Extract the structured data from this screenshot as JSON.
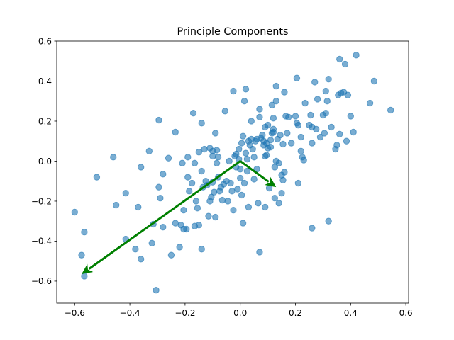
{
  "chart_data": {
    "type": "scatter",
    "title": "Principle Components",
    "xlabel": "",
    "ylabel": "",
    "xlim": [
      -0.665,
      0.61
    ],
    "ylim": [
      -0.71,
      0.6
    ],
    "xticks": [
      -0.6,
      -0.4,
      -0.2,
      0.0,
      0.2,
      0.4,
      0.6
    ],
    "yticks": [
      -0.6,
      -0.4,
      -0.2,
      0.0,
      0.2,
      0.4,
      0.6
    ],
    "xtick_labels": [
      "−0.6",
      "−0.4",
      "−0.2",
      "0.0",
      "0.2",
      "0.4",
      "0.6"
    ],
    "ytick_labels": [
      "−0.6",
      "−0.4",
      "−0.2",
      "0.0",
      "0.2",
      "0.4",
      "0.6"
    ],
    "grid": false,
    "legend": "none",
    "point_color": "#1f77b4",
    "point_alpha": 0.6,
    "arrow_color": "#008000",
    "arrows": [
      {
        "from": [
          0.0,
          0.0
        ],
        "to": [
          -0.575,
          -0.565
        ]
      },
      {
        "from": [
          0.0,
          0.0
        ],
        "to": [
          0.13,
          -0.13
        ]
      }
    ],
    "points": [
      [
        -0.6,
        -0.255
      ],
      [
        -0.565,
        -0.355
      ],
      [
        -0.575,
        -0.47
      ],
      [
        -0.52,
        -0.08
      ],
      [
        -0.46,
        0.02
      ],
      [
        -0.45,
        -0.22
      ],
      [
        -0.415,
        -0.16
      ],
      [
        -0.415,
        -0.39
      ],
      [
        -0.38,
        -0.44
      ],
      [
        -0.37,
        -0.23
      ],
      [
        -0.36,
        -0.03
      ],
      [
        -0.36,
        -0.49
      ],
      [
        -0.33,
        0.05
      ],
      [
        -0.32,
        -0.41
      ],
      [
        -0.315,
        -0.315
      ],
      [
        -0.305,
        -0.645
      ],
      [
        -0.295,
        0.205
      ],
      [
        -0.295,
        -0.13
      ],
      [
        -0.29,
        -0.185
      ],
      [
        -0.28,
        -0.065
      ],
      [
        -0.28,
        -0.33
      ],
      [
        -0.26,
        0.015
      ],
      [
        -0.25,
        -0.47
      ],
      [
        -0.235,
        0.145
      ],
      [
        -0.235,
        -0.31
      ],
      [
        -0.22,
        -0.43
      ],
      [
        -0.215,
        -0.32
      ],
      [
        -0.205,
        -0.34
      ],
      [
        -0.21,
        -0.01
      ],
      [
        -0.205,
        -0.245
      ],
      [
        -0.195,
        -0.34
      ],
      [
        -0.19,
        0.02
      ],
      [
        -0.19,
        -0.08
      ],
      [
        -0.185,
        -0.15
      ],
      [
        -0.175,
        -0.11
      ],
      [
        -0.17,
        0.24
      ],
      [
        -0.165,
        -0.325
      ],
      [
        -0.165,
        -0.01
      ],
      [
        -0.16,
        -0.2
      ],
      [
        -0.155,
        -0.235
      ],
      [
        -0.15,
        0.045
      ],
      [
        -0.15,
        -0.32
      ],
      [
        -0.14,
        0.19
      ],
      [
        -0.14,
        -0.05
      ],
      [
        -0.14,
        -0.44
      ],
      [
        -0.135,
        -0.13
      ],
      [
        -0.13,
        0.06
      ],
      [
        -0.125,
        -0.1
      ],
      [
        -0.12,
        -0.12
      ],
      [
        -0.115,
        -0.275
      ],
      [
        -0.11,
        0.065
      ],
      [
        -0.11,
        -0.2
      ],
      [
        -0.105,
        -0.18
      ],
      [
        -0.1,
        0.05
      ],
      [
        -0.1,
        0.025
      ],
      [
        -0.1,
        -0.105
      ],
      [
        -0.095,
        -0.155
      ],
      [
        -0.09,
        0.14
      ],
      [
        -0.09,
        -0.28
      ],
      [
        -0.085,
        0.055
      ],
      [
        -0.085,
        -0.01
      ],
      [
        -0.08,
        0.02
      ],
      [
        -0.08,
        -0.08
      ],
      [
        -0.075,
        -0.15
      ],
      [
        -0.07,
        -0.13
      ],
      [
        -0.065,
        -0.195
      ],
      [
        -0.06,
        -0.115
      ],
      [
        -0.055,
        0.25
      ],
      [
        -0.05,
        -0.1
      ],
      [
        -0.045,
        -0.2
      ],
      [
        -0.04,
        0.0
      ],
      [
        -0.035,
        -0.11
      ],
      [
        -0.03,
        -0.15
      ],
      [
        -0.025,
        0.35
      ],
      [
        -0.025,
        -0.245
      ],
      [
        -0.02,
        0.025
      ],
      [
        -0.015,
        0.035
      ],
      [
        -0.015,
        -0.03
      ],
      [
        -0.01,
        -0.14
      ],
      [
        -0.005,
        0.06
      ],
      [
        -0.005,
        0.01
      ],
      [
        0.0,
        -0.04
      ],
      [
        0.0,
        -0.085
      ],
      [
        0.005,
        0.09
      ],
      [
        0.005,
        -0.17
      ],
      [
        0.01,
        0.125
      ],
      [
        0.01,
        -0.31
      ],
      [
        0.015,
        0.3
      ],
      [
        0.015,
        -0.11
      ],
      [
        0.02,
        0.36
      ],
      [
        0.02,
        0.04
      ],
      [
        0.025,
        0.01
      ],
      [
        0.025,
        -0.05
      ],
      [
        0.03,
        0.1
      ],
      [
        0.03,
        -0.23
      ],
      [
        0.035,
        0.08
      ],
      [
        0.04,
        0.11
      ],
      [
        0.04,
        0.2
      ],
      [
        0.045,
        0.06
      ],
      [
        0.05,
        0.02
      ],
      [
        0.05,
        -0.09
      ],
      [
        0.055,
        0.1
      ],
      [
        0.06,
        0.11
      ],
      [
        0.06,
        -0.04
      ],
      [
        0.065,
        -0.21
      ],
      [
        0.07,
        0.22
      ],
      [
        0.07,
        0.26
      ],
      [
        0.07,
        -0.455
      ],
      [
        0.075,
        0.115
      ],
      [
        0.08,
        0.13
      ],
      [
        0.085,
        0.1
      ],
      [
        0.085,
        0.08
      ],
      [
        0.09,
        0.17
      ],
      [
        0.09,
        0.025
      ],
      [
        0.09,
        -0.23
      ],
      [
        0.095,
        0.03
      ],
      [
        0.095,
        0.09
      ],
      [
        0.1,
        0.18
      ],
      [
        0.1,
        0.065
      ],
      [
        0.105,
        -0.135
      ],
      [
        0.11,
        0.105
      ],
      [
        0.11,
        0.07
      ],
      [
        0.115,
        0.14
      ],
      [
        0.115,
        0.28
      ],
      [
        0.12,
        0.145
      ],
      [
        0.12,
        0.16
      ],
      [
        0.12,
        0.215
      ],
      [
        0.125,
        -0.185
      ],
      [
        0.125,
        -0.03
      ],
      [
        0.13,
        0.375
      ],
      [
        0.13,
        0.0
      ],
      [
        0.13,
        0.3
      ],
      [
        0.135,
        0.11
      ],
      [
        0.14,
        -0.01
      ],
      [
        0.14,
        -0.21
      ],
      [
        0.145,
        0.13
      ],
      [
        0.15,
        -0.07
      ],
      [
        0.15,
        -0.16
      ],
      [
        0.155,
        -0.095
      ],
      [
        0.155,
        0.085
      ],
      [
        0.16,
        0.345
      ],
      [
        0.16,
        -0.055
      ],
      [
        0.165,
        0.225
      ],
      [
        0.17,
        0.14
      ],
      [
        0.175,
        0.22
      ],
      [
        0.185,
        0.09
      ],
      [
        0.2,
        0.225
      ],
      [
        0.205,
        0.415
      ],
      [
        0.205,
        0.19
      ],
      [
        0.21,
        0.18
      ],
      [
        0.21,
        -0.11
      ],
      [
        0.22,
        0.05
      ],
      [
        0.22,
        0.12
      ],
      [
        0.225,
        0.02
      ],
      [
        0.23,
        0.005
      ],
      [
        0.235,
        0.29
      ],
      [
        0.25,
        0.18
      ],
      [
        0.255,
        0.23
      ],
      [
        0.26,
        0.17
      ],
      [
        0.26,
        0.09
      ],
      [
        0.26,
        -0.335
      ],
      [
        0.27,
        0.395
      ],
      [
        0.275,
        0.16
      ],
      [
        0.28,
        0.31
      ],
      [
        0.29,
        0.12
      ],
      [
        0.3,
        0.23
      ],
      [
        0.305,
        0.14
      ],
      [
        0.31,
        0.24
      ],
      [
        0.31,
        0.35
      ],
      [
        0.315,
        0.3
      ],
      [
        0.32,
        0.41
      ],
      [
        0.32,
        -0.3
      ],
      [
        0.33,
        0.17
      ],
      [
        0.345,
        0.06
      ],
      [
        0.35,
        0.08
      ],
      [
        0.355,
        0.33
      ],
      [
        0.36,
        0.51
      ],
      [
        0.36,
        0.135
      ],
      [
        0.365,
        0.34
      ],
      [
        0.375,
        0.345
      ],
      [
        0.38,
        0.485
      ],
      [
        0.385,
        0.1
      ],
      [
        0.39,
        0.33
      ],
      [
        0.4,
        0.225
      ],
      [
        0.41,
        0.145
      ],
      [
        0.42,
        0.53
      ],
      [
        0.47,
        0.29
      ],
      [
        0.485,
        0.4
      ],
      [
        0.545,
        0.255
      ],
      [
        -0.565,
        -0.575
      ]
    ]
  }
}
